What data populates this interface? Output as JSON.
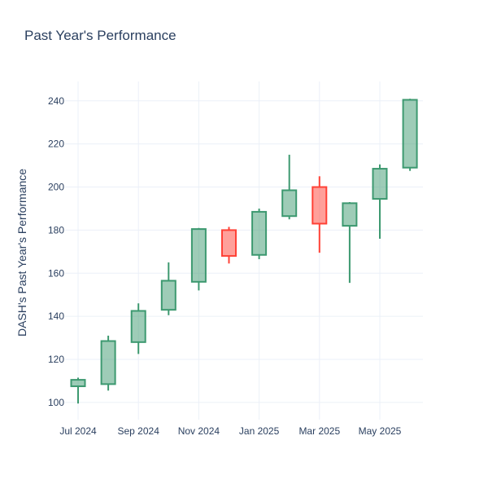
{
  "chart_data": {
    "type": "candlestick",
    "title": "Past Year's Performance",
    "xlabel": "",
    "ylabel": "DASH's Past Year's Performance",
    "ylim": [
      92,
      249
    ],
    "yticks": [
      100,
      120,
      140,
      160,
      180,
      200,
      220,
      240
    ],
    "xticks": [
      {
        "label": "Jul 2024",
        "month_index": 0
      },
      {
        "label": "Sep 2024",
        "month_index": 2
      },
      {
        "label": "Nov 2024",
        "month_index": 4
      },
      {
        "label": "Jan 2025",
        "month_index": 6
      },
      {
        "label": "Mar 2025",
        "month_index": 8
      },
      {
        "label": "May 2025",
        "month_index": 10
      }
    ],
    "grid": true,
    "legend": "none",
    "colors": {
      "increasing": "#3d9970",
      "decreasing": "#ff4136"
    },
    "series": [
      {
        "month": "Jul 2024",
        "open": 107.5,
        "high": 111.5,
        "low": 99.5,
        "close": 110.5
      },
      {
        "month": "Aug 2024",
        "open": 108.5,
        "high": 131,
        "low": 105.5,
        "close": 128.5
      },
      {
        "month": "Sep 2024",
        "open": 128,
        "high": 146,
        "low": 122.5,
        "close": 142.5
      },
      {
        "month": "Oct 2024",
        "open": 143,
        "high": 165,
        "low": 140.5,
        "close": 156.5
      },
      {
        "month": "Nov 2024",
        "open": 156,
        "high": 181,
        "low": 152,
        "close": 180.5
      },
      {
        "month": "Dec 2024",
        "open": 180,
        "high": 181.5,
        "low": 164.5,
        "close": 168
      },
      {
        "month": "Jan 2025",
        "open": 168.5,
        "high": 190,
        "low": 166.5,
        "close": 188.5
      },
      {
        "month": "Feb 2025",
        "open": 186.5,
        "high": 215,
        "low": 185,
        "close": 198.5
      },
      {
        "month": "Mar 2025",
        "open": 200,
        "high": 205,
        "low": 169.5,
        "close": 183
      },
      {
        "month": "Apr 2025",
        "open": 182,
        "high": 193,
        "low": 155.5,
        "close": 192.5
      },
      {
        "month": "May 2025",
        "open": 194.5,
        "high": 210.5,
        "low": 176,
        "close": 208.5
      },
      {
        "month": "Jun 2025",
        "open": 209,
        "high": 241,
        "low": 207.5,
        "close": 240.5
      }
    ]
  }
}
